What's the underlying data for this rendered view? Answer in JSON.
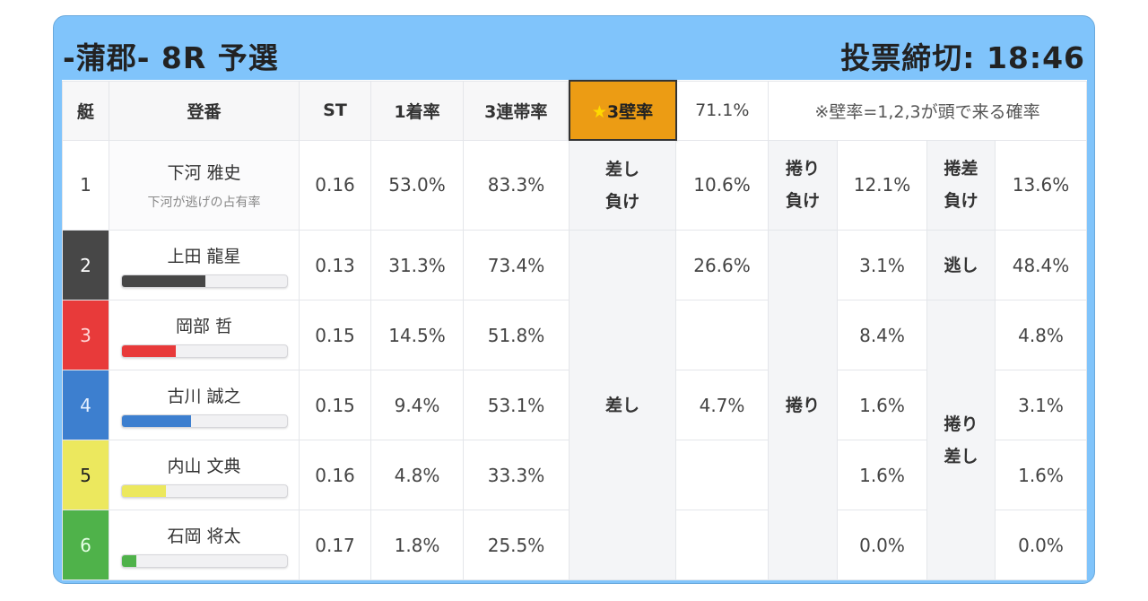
{
  "header": {
    "title": "-蒲郡- 8R 予選",
    "deadline": "投票締切: 18:46"
  },
  "columns": {
    "boat": "艇",
    "racer": "登番",
    "st": "ST",
    "win_rate": "1着率",
    "top3_rate": "3連帯率",
    "wall_label": "★3壁率",
    "wall_star": "★",
    "wall_text": "3壁率",
    "wall_value": "71.1%",
    "note": "※壁率=1,2,3が頭で来る確率"
  },
  "colors": {
    "header_bg": "#80c4fb",
    "wall_highlight": "#ec9c14"
  },
  "rows": [
    {
      "boat": "1",
      "name": "下河 雅史",
      "sub": "下河が逃げの占有率",
      "st": "0.16",
      "win": "53.0%",
      "top3": "83.3%",
      "boat_bg": "#ffffff",
      "boat_fg": "#333333"
    },
    {
      "boat": "2",
      "name": "上田 龍星",
      "st": "0.13",
      "win": "31.3%",
      "top3": "73.4%",
      "boat_bg": "#474747",
      "boat_fg": "#ffffff",
      "bar": 0.51,
      "bar_color": "#474747"
    },
    {
      "boat": "3",
      "name": "岡部 哲",
      "st": "0.15",
      "win": "14.5%",
      "top3": "51.8%",
      "boat_bg": "#e83a3a",
      "boat_fg": "#ffd6d6",
      "bar": 0.33,
      "bar_color": "#e83a3a"
    },
    {
      "boat": "4",
      "name": "古川 誠之",
      "st": "0.15",
      "win": "9.4%",
      "top3": "53.1%",
      "boat_bg": "#3d7fcf",
      "boat_fg": "#e6f0ff",
      "bar": 0.42,
      "bar_color": "#3d7fcf"
    },
    {
      "boat": "5",
      "name": "内山 文典",
      "st": "0.16",
      "win": "4.8%",
      "top3": "33.3%",
      "boat_bg": "#ece85e",
      "boat_fg": "#222222",
      "bar": 0.27,
      "bar_color": "#ece85e"
    },
    {
      "boat": "6",
      "name": "石岡 将太",
      "st": "0.17",
      "win": "1.8%",
      "top3": "25.5%",
      "boat_bg": "#4fb24a",
      "boat_fg": "#e6ffe6",
      "bar": 0.09,
      "bar_color": "#4fb24a"
    }
  ],
  "outcomes": {
    "sashi_make": {
      "label1": "差し",
      "label2": "負け",
      "value": "10.6%"
    },
    "makuri_make": {
      "label1": "捲り",
      "label2": "負け",
      "value": "12.1%"
    },
    "makurisashi_make": {
      "label1": "捲差",
      "label2": "負け",
      "value": "13.6%"
    },
    "sashi": {
      "label": "差し",
      "values": [
        "26.6%",
        "",
        "4.7%",
        "",
        ""
      ]
    },
    "makuri": {
      "label": "捲り",
      "values": [
        "3.1%",
        "8.4%",
        "1.6%",
        "1.6%",
        "0.0%"
      ]
    },
    "nige": {
      "label": "逃し",
      "value": "48.4%"
    },
    "makurisashi": {
      "label1": "捲り",
      "label2": "差し",
      "values": [
        "4.8%",
        "3.1%",
        "1.6%",
        "0.0%"
      ]
    }
  }
}
